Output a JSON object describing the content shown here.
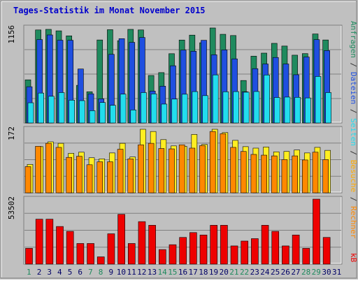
{
  "chart_data": {
    "type": "bar",
    "title": "Tages-Statistik im Monat November 2015",
    "categories": [
      "1",
      "2",
      "3",
      "4",
      "5",
      "6",
      "7",
      "8",
      "9",
      "10",
      "11",
      "12",
      "13",
      "14",
      "15",
      "16",
      "17",
      "18",
      "19",
      "20",
      "21",
      "22",
      "23",
      "24",
      "25",
      "26",
      "27",
      "28",
      "29",
      "30",
      "31"
    ],
    "weekend_days": [
      "1",
      "7",
      "8",
      "14",
      "15",
      "21",
      "22",
      "28",
      "29"
    ],
    "panels": {
      "top": {
        "ymax_label": "1156",
        "ylim": [
          0,
          1156
        ],
        "series": [
          {
            "name": "Anfragen",
            "values": [
              525,
              1132,
              1139,
              1121,
              1060,
              458,
              380,
              1010,
              1135,
              1001,
              1139,
              1132,
              578,
              613,
              843,
              1009,
              1069,
              976,
              1156,
              1079,
              1064,
              517,
              813,
              850,
              969,
              936,
              825,
              844,
              1083,
              1010,
              0
            ]
          },
          {
            "name": "Dateien",
            "values": [
              441,
              1015,
              1071,
              1007,
              1006,
              657,
              355,
              294,
              835,
              1026,
              981,
              1040,
              388,
              448,
              696,
              887,
              873,
              1006,
              830,
              889,
              780,
              380,
              661,
              718,
              797,
              718,
              587,
              803,
              1014,
              881,
              0
            ]
          },
          {
            "name": "Seiten",
            "values": [
              246,
              364,
              325,
              370,
              278,
              272,
              150,
              249,
              215,
              351,
              159,
              370,
              354,
              230,
              291,
              350,
              382,
              333,
              585,
              380,
              382,
              375,
              383,
              584,
              310,
              315,
              312,
              305,
              566,
              370,
              0
            ]
          }
        ],
        "colors": {
          "Anfragen": "#1f8a5e",
          "Dateien": "#1f4fe0",
          "Seiten": "#22ddee"
        }
      },
      "middle": {
        "ymax_label": "172",
        "ylim": [
          0,
          172
        ],
        "series": [
          {
            "name": "Besuche",
            "values": [
              77,
              125,
              138,
              134,
              107,
              110,
              95,
              92,
              108,
              134,
              97,
              172,
              166,
              144,
              127,
              126,
              158,
              131,
              172,
              163,
              142,
              125,
              121,
              124,
              111,
              112,
              116,
              108,
              123,
              115,
              0
            ]
          },
          {
            "name": "Rechner",
            "values": [
              71,
              126,
              134,
              123,
              96,
              99,
              76,
              84,
              84,
              118,
              92,
              130,
              134,
              120,
              119,
              130,
              121,
              128,
              166,
              160,
              123,
              112,
              104,
              102,
              100,
              90,
              100,
              89,
              110,
              90,
              0
            ]
          }
        ],
        "colors": {
          "Besuche": "#ffee22",
          "Rechner": "#ff8800"
        }
      },
      "bottom": {
        "ymax_label": "53502",
        "ylim": [
          0,
          53502
        ],
        "series": [
          {
            "name": "kB",
            "values": [
              13000,
              37000,
              37000,
              31000,
              27000,
              17000,
              17000,
              6000,
              25000,
              41000,
              17000,
              35000,
              32000,
              12000,
              16000,
              22000,
              26000,
              24000,
              32000,
              32000,
              15000,
              19000,
              21000,
              32000,
              27000,
              15000,
              24000,
              13000,
              53502,
              22000,
              0
            ]
          }
        ],
        "colors": {
          "kB": "#ee0000"
        }
      }
    },
    "right_labels": {
      "top": [
        {
          "text": "Anfragen",
          "color": "#1f8a5e"
        },
        {
          "text": " / ",
          "color": "#333333"
        },
        {
          "text": "Dateien",
          "color": "#1f4fe0"
        },
        {
          "text": " / ",
          "color": "#333333"
        },
        {
          "text": "Seiten",
          "color": "#22ddee"
        },
        {
          "text": " / ",
          "color": "#333333"
        },
        {
          "text": "Besuche",
          "color": "#ffaa00"
        },
        {
          "text": " / ",
          "color": "#333333"
        },
        {
          "text": "Rechner",
          "color": "#ff8800"
        }
      ],
      "bottom": {
        "text": "kB",
        "color": "#ee0000"
      }
    },
    "colors": {
      "background": "#c0c0c0",
      "title": "#0000cc",
      "axis_label_weekday": "#000066",
      "axis_label_weekend": "#1f8a5e"
    }
  }
}
